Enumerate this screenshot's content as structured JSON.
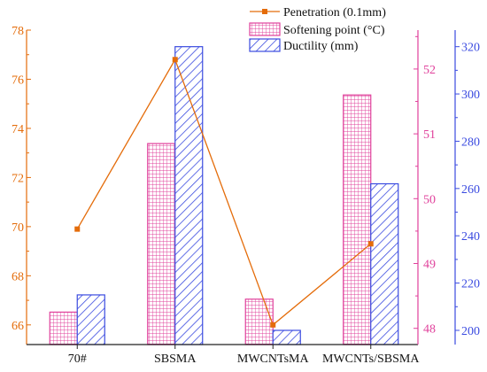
{
  "chart_data": {
    "type": "bar",
    "title": "",
    "categories": [
      "70#",
      "SBSMA",
      "MWCNTsMA",
      "MWCNTs/SBSMA"
    ],
    "series": [
      {
        "name": "Penetration (0.1mm)",
        "kind": "line",
        "axis": "left",
        "color": "#E46C0A",
        "values": [
          69.9,
          76.8,
          66.0,
          69.3
        ]
      },
      {
        "name": "Softening point (°C)",
        "kind": "bar",
        "axis": "right1",
        "color": "#E0409B",
        "pattern": "grid",
        "values": [
          48.25,
          50.85,
          48.45,
          51.6
        ]
      },
      {
        "name": "Ductility (mm)",
        "kind": "bar",
        "axis": "right2",
        "color": "#3B4BE0",
        "pattern": "diagonal",
        "values": [
          215,
          320,
          200,
          262
        ]
      }
    ],
    "axes": {
      "left": {
        "min": 65.2,
        "max": 78,
        "ticks": [
          66,
          68,
          70,
          72,
          74,
          76,
          78
        ],
        "color": "#E46C0A"
      },
      "right1": {
        "min": 47.75,
        "max": 52.6,
        "ticks": [
          48,
          49,
          50,
          51,
          52
        ],
        "color": "#E0409B"
      },
      "right2": {
        "min": 194,
        "max": 327,
        "ticks": [
          200,
          220,
          240,
          260,
          280,
          300,
          320
        ],
        "color": "#3B4BE0"
      }
    },
    "grid": false,
    "legend_position": "top-right"
  }
}
